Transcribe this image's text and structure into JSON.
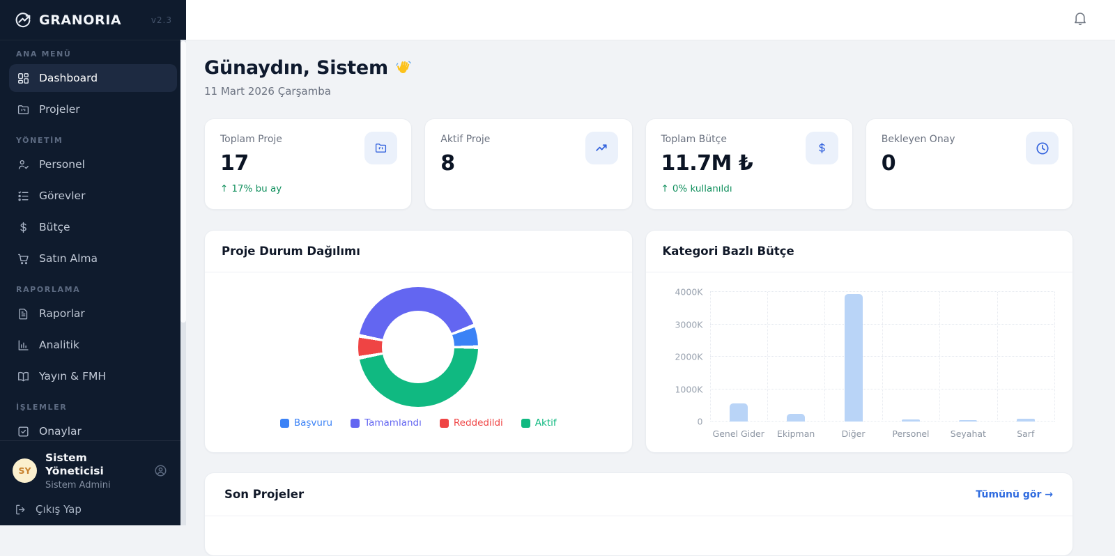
{
  "app": {
    "name": "GRANORIA",
    "version": "v2.3"
  },
  "sidebar": {
    "sections": [
      {
        "label": "ANA MENÜ",
        "items": [
          {
            "label": "Dashboard",
            "icon": "dashboard-grid-icon",
            "active": true
          },
          {
            "label": "Projeler",
            "icon": "folder-icon",
            "active": false
          }
        ]
      },
      {
        "label": "YÖNETİM",
        "items": [
          {
            "label": "Personel",
            "icon": "person-check-icon",
            "active": false
          },
          {
            "label": "Görevler",
            "icon": "task-list-icon",
            "active": false
          },
          {
            "label": "Bütçe",
            "icon": "dollar-icon",
            "active": false
          },
          {
            "label": "Satın Alma",
            "icon": "cart-icon",
            "active": false
          }
        ]
      },
      {
        "label": "RAPORLAMA",
        "items": [
          {
            "label": "Raporlar",
            "icon": "document-icon",
            "active": false
          },
          {
            "label": "Analitik",
            "icon": "bar-chart-icon",
            "active": false
          },
          {
            "label": "Yayın & FMH",
            "icon": "book-open-icon",
            "active": false
          }
        ]
      },
      {
        "label": "İŞLEMLER",
        "items": [
          {
            "label": "Onaylar",
            "icon": "check-square-icon",
            "active": false,
            "clipped": true
          }
        ]
      }
    ],
    "user": {
      "initials": "SY",
      "name": "Sistem Yöneticisi",
      "role": "Sistem Admini"
    },
    "logout": {
      "label": "Çıkış Yap",
      "icon": "logout-icon"
    }
  },
  "main": {
    "greeting": {
      "title": "Günaydın, Sistem",
      "emoji": "👋",
      "date": "11 Mart 2026 Çarşamba"
    },
    "stats": [
      {
        "label": "Toplam Proje",
        "value": "17",
        "trend_arrow": "↑",
        "trend": "17% bu ay",
        "icon": "folder-icon"
      },
      {
        "label": "Aktif Proje",
        "value": "8",
        "trend_arrow": "",
        "trend": "",
        "icon": "trending-up-icon"
      },
      {
        "label": "Toplam Bütçe",
        "value": "11.7M ₺",
        "trend_arrow": "↑",
        "trend": "0% kullanıldı",
        "icon": "dollar-icon"
      },
      {
        "label": "Bekleyen Onay",
        "value": "0",
        "trend_arrow": "",
        "trend": "",
        "icon": "clock-icon"
      }
    ],
    "recent": {
      "title": "Son Projeler",
      "link": "Tümünü gör →"
    }
  },
  "colors": {
    "sidebar_bg": "#0f1b2d",
    "accent_blue": "#3161dd",
    "trend_green": "#12905e",
    "bar_fill": "#b9d4f7",
    "link_blue": "#2f6bdf",
    "avatar_bg": "#fbf0ce",
    "avatar_text": "#c8822e"
  },
  "chart_data": [
    {
      "type": "pie",
      "donut": true,
      "title": "Proje Durum Dağılımı",
      "labels": [
        "Başvuru",
        "Tamamlandı",
        "Reddedildi",
        "Aktif"
      ],
      "values": [
        1,
        7,
        1,
        8
      ],
      "colors": [
        "#3b82f6",
        "#6366f1",
        "#ef4444",
        "#10b981"
      ],
      "legend_position": "bottom"
    },
    {
      "type": "bar",
      "title": "Kategori Bazlı Bütçe",
      "categories": [
        "Genel Gider",
        "Ekipman",
        "Diğer",
        "Personel",
        "Seyahat",
        "Sarf"
      ],
      "values": [
        560,
        230,
        3930,
        60,
        35,
        95
      ],
      "unit": "K",
      "ytick_labels": [
        "0",
        "1000K",
        "2000K",
        "3000K",
        "4000K"
      ],
      "ytick_values": [
        0,
        1000,
        2000,
        3000,
        4000
      ],
      "ylim": [
        0,
        4000
      ],
      "grid": true,
      "xlabel": "",
      "ylabel": ""
    }
  ]
}
